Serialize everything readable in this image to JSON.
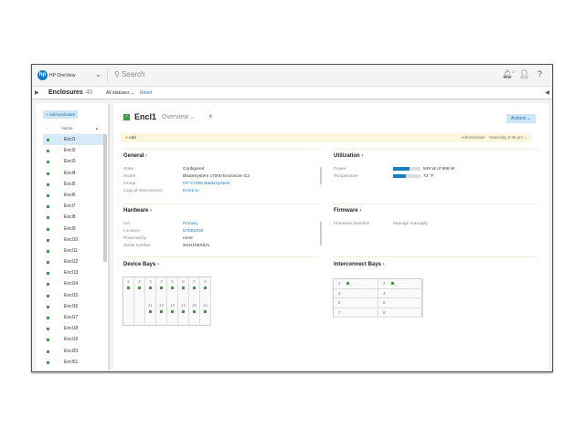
{
  "app": {
    "brand": "HP OneView",
    "search_placeholder": "Search",
    "notification_count": "2"
  },
  "subheader": {
    "title": "Enclosures",
    "count": "40",
    "filter": "All statuses",
    "reset": "Reset"
  },
  "sidebar": {
    "add_button": "+ Add enclosure",
    "column_header": "Name",
    "items": [
      "Encl1",
      "Encl2",
      "Encl3",
      "Encl4",
      "Encl5",
      "Encl6",
      "Encl7",
      "Encl8",
      "Encl9",
      "Encl10",
      "Encl11",
      "Encl12",
      "Encl13",
      "Encl14",
      "Encl15",
      "Encl16",
      "Encl17",
      "Encl18",
      "Encl19",
      "Encl20",
      "Encl51"
    ],
    "selected": "Encl1",
    "status_color": "#3a9d3a"
  },
  "main": {
    "title": "Encl1",
    "view": "Overview",
    "actions": "Actions",
    "alert": {
      "label": "Add",
      "user": "Administrator",
      "time": "Yesterday 5:38 pm"
    },
    "general": {
      "title": "General",
      "rows": [
        {
          "k": "State",
          "v": "Configured"
        },
        {
          "k": "Model",
          "v": "BladeSystem c7000 Enclosure G2"
        },
        {
          "k": "Group",
          "v": "HP C7000 BladeSystem"
        },
        {
          "k": "Logical interconnect",
          "v": "Encl1-LI"
        }
      ]
    },
    "hardware": {
      "title": "Hardware",
      "rows": [
        {
          "k": "OA",
          "v": "Primary"
        },
        {
          "k": "Location",
          "v": "57EB2202"
        },
        {
          "k": "Powered by",
          "v": "none"
        },
        {
          "k": "Serial number",
          "v": "SGH100X6J1"
        }
      ]
    },
    "utilization": {
      "title": "Utilization",
      "power_label": "Power",
      "power": "549 W of 906 W",
      "power_fraction": 0.61,
      "temp_label": "Temperature",
      "temp": "72 °F",
      "temp_fraction": 0.48
    },
    "firmware": {
      "title": "Firmware",
      "label": "Firmware baseline",
      "value": "Manage manually"
    },
    "device_bays": {
      "title": "Device Bays",
      "top": [
        "1",
        "2",
        "3",
        "4",
        "5",
        "6",
        "7",
        "8"
      ],
      "bottom": [
        "",
        "",
        "11",
        "12",
        "13",
        "14",
        "15",
        "16"
      ]
    },
    "interconnect_bays": {
      "title": "Interconnect Bays",
      "bays": [
        "1",
        "2",
        "3",
        "4",
        "5",
        "6",
        "7",
        "8"
      ]
    }
  }
}
